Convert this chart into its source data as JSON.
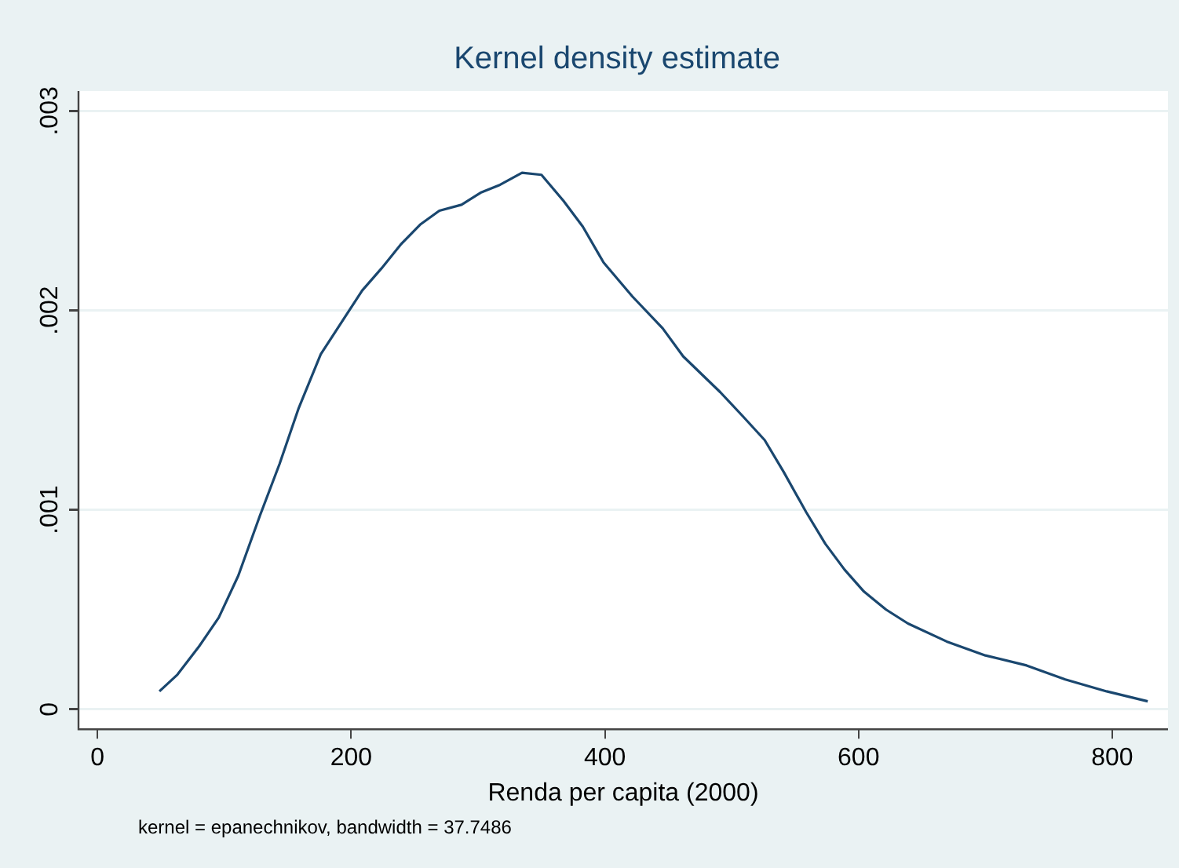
{
  "chart_data": {
    "type": "line",
    "title": "Kernel density estimate",
    "xlabel": "Renda per capita (2000)",
    "annotations": [
      "kernel = epanechnikov, bandwidth = 37.7486"
    ],
    "x": [
      48.8,
      63,
      80,
      95.6,
      111,
      128,
      143.5,
      158.6,
      176,
      193.4,
      208.7,
      223.8,
      239,
      254.3,
      269.5,
      287,
      302,
      317.4,
      334.7,
      350,
      367.3,
      382.6,
      399,
      421.7,
      445.6,
      461.7,
      491,
      508.7,
      526,
      541,
      558.6,
      573.8,
      589,
      604.3,
      621.7,
      639,
      669.5,
      700,
      732.5,
      763,
      795.6,
      828
    ],
    "series": [
      {
        "color": "#1a476f",
        "values": [
          9e-05,
          0.000174,
          0.000315,
          0.00046,
          0.00067,
          0.00097,
          0.00123,
          0.00151,
          0.00178,
          0.00195,
          0.0021,
          0.00221,
          0.00233,
          0.00243,
          0.0025,
          0.00253,
          0.00259,
          0.00263,
          0.00269,
          0.00268,
          0.00255,
          0.00242,
          0.00224,
          0.00207,
          0.00191,
          0.00177,
          0.00159,
          0.00147,
          0.00135,
          0.00119,
          0.00099,
          0.00083,
          0.0007,
          0.00059,
          0.0005,
          0.00043,
          0.00034,
          0.00027,
          0.00022,
          0.00015,
          9e-05,
          4e-05
        ]
      }
    ],
    "xlim": [
      -15,
      844
    ],
    "xticks": [
      0,
      200,
      400,
      600,
      800
    ],
    "ylim": [
      -0.0001,
      0.0031
    ],
    "yticks": [
      {
        "value": 0,
        "label": "0"
      },
      {
        "value": 0.001,
        "label": ".001"
      },
      {
        "value": 0.002,
        "label": ".002"
      },
      {
        "value": 0.003,
        "label": ".003"
      }
    ],
    "grid": "y",
    "legend": false,
    "marker": "none",
    "line_style": "solid"
  }
}
